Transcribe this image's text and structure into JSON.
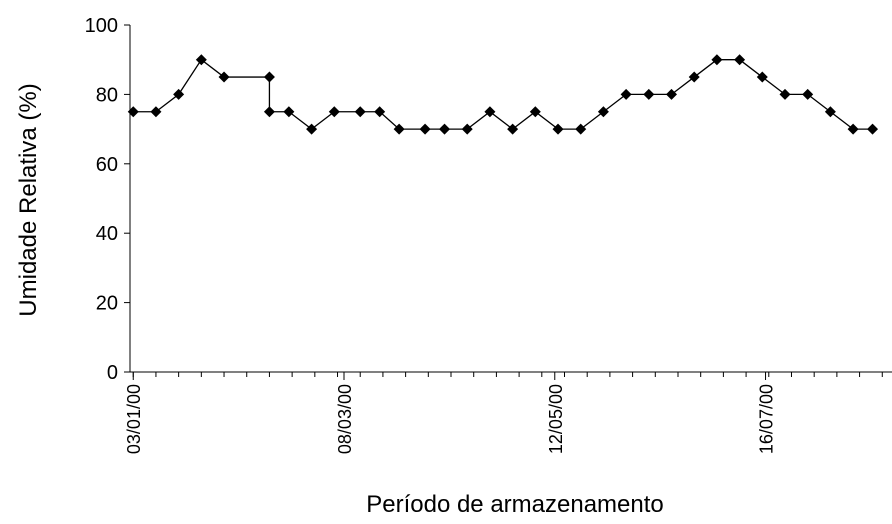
{
  "chart_data": {
    "type": "line",
    "x_label": "Período de armazenamento",
    "y_label": "Umidade Relativa (%)",
    "x": [
      "03/01/00",
      "10/01/00",
      "17/01/00",
      "24/01/00",
      "31/01/00",
      "14/02/00",
      "14/02/00",
      "20/02/00",
      "27/02/00",
      "05/03/00",
      "13/03/00",
      "19/03/00",
      "25/03/00",
      "02/04/00",
      "08/04/00",
      "15/04/00",
      "22/04/00",
      "29/04/00",
      "06/05/00",
      "13/05/00",
      "20/05/00",
      "27/05/00",
      "03/06/00",
      "10/06/00",
      "17/06/00",
      "24/06/00",
      "01/07/00",
      "08/07/00",
      "15/07/00",
      "22/07/00",
      "29/07/00",
      "05/08/00",
      "12/08/00",
      "18/08/00"
    ],
    "series": [
      {
        "name": "Umidade Relativa",
        "color": "#000000",
        "values": [
          75,
          75,
          80,
          90,
          85,
          85,
          75,
          75,
          70,
          75,
          75,
          75,
          70,
          70,
          70,
          70,
          75,
          70,
          75,
          70,
          70,
          75,
          80,
          80,
          80,
          85,
          90,
          90,
          85,
          80,
          80,
          75,
          70,
          70
        ]
      }
    ],
    "xlim": [
      "02/01/00",
      "24/08/00"
    ],
    "xticks": [
      "03/01/00",
      "08/03/00",
      "12/05/00",
      "16/07/00"
    ],
    "ylim": [
      0,
      100
    ],
    "yticks": [
      0,
      20,
      40,
      60,
      80,
      100
    ]
  }
}
